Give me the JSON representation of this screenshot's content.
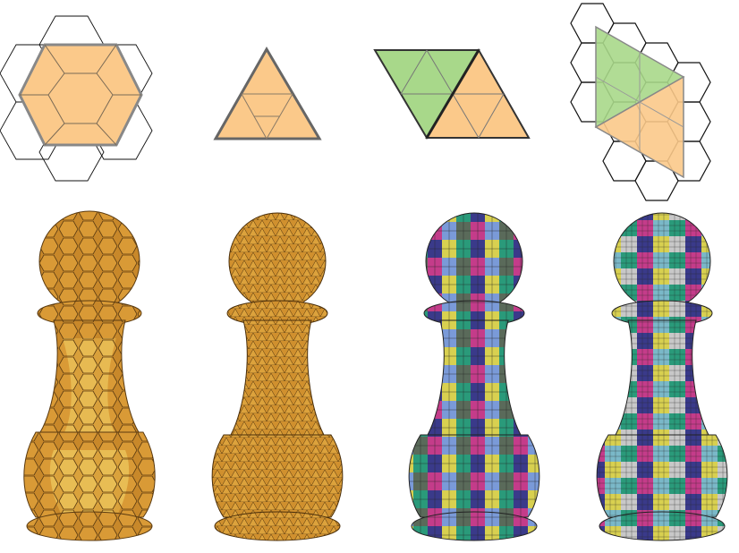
{
  "figure": {
    "top_row": [
      {
        "id": "hexagon-tiling",
        "shape": "hexagon-in-hexagonal-grid",
        "fill": "#fbc98a",
        "stroke": "#888888"
      },
      {
        "id": "triangle-subdivision",
        "shape": "subdivided-triangle",
        "fill": "#fbc98a",
        "stroke": "#555555"
      },
      {
        "id": "rhombus-two-triangles",
        "shape": "green-and-orange-triangles",
        "fills": [
          "#a8d88a",
          "#fbc98a"
        ],
        "stroke": "#333333"
      },
      {
        "id": "rhombus-on-hex-grid",
        "shape": "rhombus-over-hexagonal-grid",
        "fills": [
          "#a8d88a",
          "#fbc98a"
        ],
        "stroke": "#000000"
      }
    ],
    "bottom_row": [
      {
        "id": "pawn-hexagonal-mesh",
        "mesh": "hexagonal",
        "palette": [
          "#c8882a",
          "#e8b040",
          "#f5d860"
        ]
      },
      {
        "id": "pawn-triangle-mesh",
        "mesh": "triangular",
        "palette": [
          "#c8882a",
          "#e0a440"
        ]
      },
      {
        "id": "pawn-colored-patches",
        "mesh": "triangular-patches",
        "palette": [
          "#3a3a8a",
          "#c43c8a",
          "#2a9a7a",
          "#d8d050",
          "#7a9ad8",
          "#c8c8c8",
          "#5a6a5a"
        ]
      },
      {
        "id": "pawn-colored-patches-fine",
        "mesh": "triangular-patches-fine",
        "palette": [
          "#3a3a8a",
          "#c43c8a",
          "#2a9a7a",
          "#d8d050",
          "#7a9ad8",
          "#c8c8c8",
          "#5a6a5a"
        ]
      }
    ]
  }
}
